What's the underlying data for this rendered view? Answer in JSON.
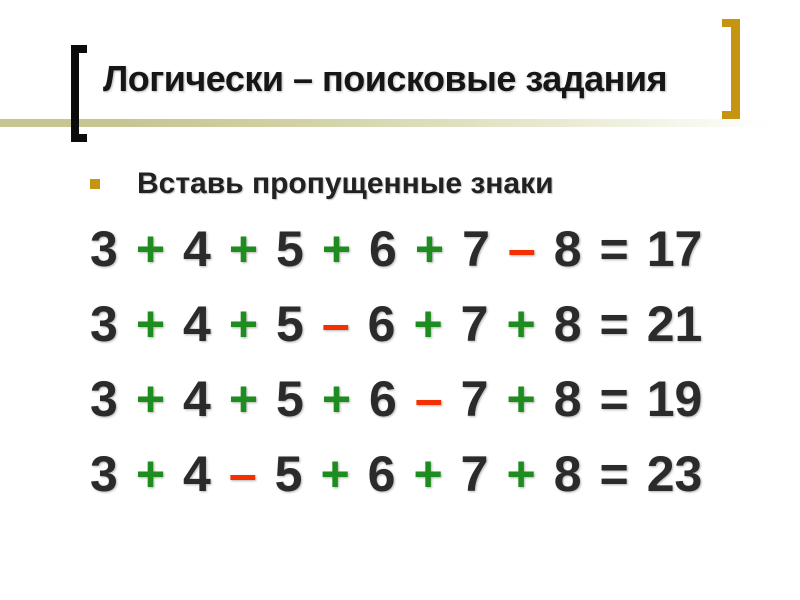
{
  "slide": {
    "title": "Логически – поисковые задания",
    "bullet_text": "Вставь пропущенные знаки"
  },
  "equations": {
    "rows": [
      [
        "3",
        "+",
        "4",
        "+",
        "5",
        "+",
        "6",
        "+",
        "7",
        "–",
        "8",
        "=",
        "17"
      ],
      [
        "3",
        "+",
        "4",
        "+",
        "5",
        "–",
        "6",
        "+",
        "7",
        "+",
        "8",
        "=",
        "21"
      ],
      [
        "3",
        "+",
        "4",
        "+",
        "5",
        "+",
        "6",
        "–",
        "7",
        "+",
        "8",
        "=",
        "19"
      ],
      [
        "3",
        "+",
        "4",
        "–",
        "5",
        "+",
        "6",
        "+",
        "7",
        "+",
        "8",
        "=",
        "23"
      ]
    ]
  },
  "colors": {
    "plus_green": "#1e8c1e",
    "minus_red": "#f53000",
    "accent_gold": "#c59410",
    "bracket_black": "#0b0b0b",
    "rule_olive": "#c6c693",
    "text_dark": "#2b2b2b"
  }
}
